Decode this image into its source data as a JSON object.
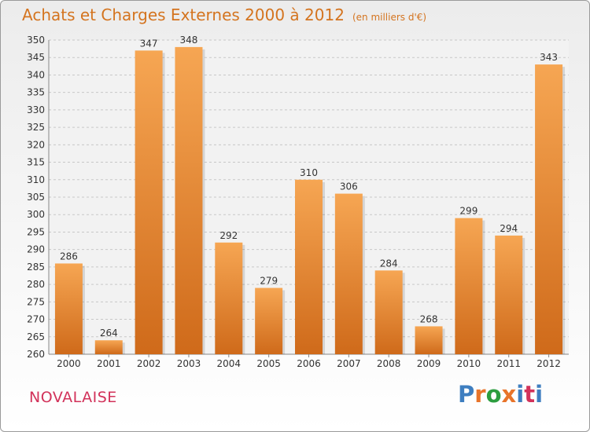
{
  "header": {
    "title": "Achats et Charges Externes 2000 à 2012",
    "subtitle": "(en milliers d'€)"
  },
  "footer": {
    "location": "NOVALAISE",
    "logo_text": "Proxiti",
    "logo_colors": [
      "#3e7ec0",
      "#e8742a",
      "#2c9d3f",
      "#e8742a",
      "#3e7ec0",
      "#d2325a",
      "#3e7ec0"
    ]
  },
  "colors": {
    "bar_light": "#f6a653",
    "bar_dark": "#cf6a1a",
    "title": "#d4741f",
    "location": "#d2325a"
  },
  "chart_data": {
    "type": "bar",
    "title": "Achats et Charges Externes 2000 à 2012",
    "subtitle": "(en milliers d'€)",
    "categories": [
      "2000",
      "2001",
      "2002",
      "2003",
      "2004",
      "2005",
      "2006",
      "2007",
      "2008",
      "2009",
      "2010",
      "2011",
      "2012"
    ],
    "values": [
      286,
      264,
      347,
      348,
      292,
      279,
      310,
      306,
      284,
      268,
      299,
      294,
      343
    ],
    "ylim": [
      260,
      350
    ],
    "yticks": [
      260,
      265,
      270,
      275,
      280,
      285,
      290,
      295,
      300,
      305,
      310,
      315,
      320,
      325,
      330,
      335,
      340,
      345,
      350
    ],
    "xlabel": "",
    "ylabel": "",
    "grid": true,
    "data_labels": true
  }
}
